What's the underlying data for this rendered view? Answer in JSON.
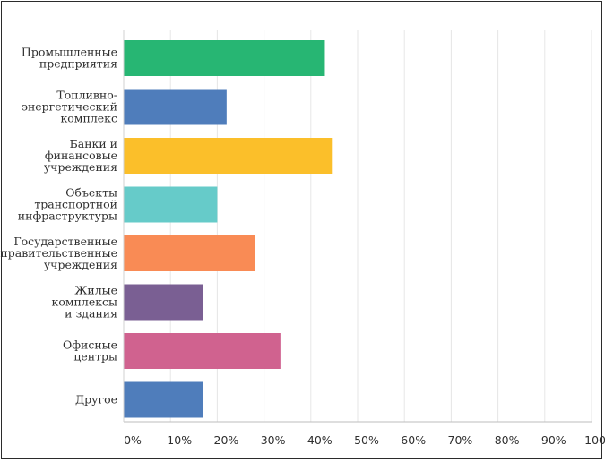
{
  "chart_data": {
    "type": "bar",
    "orientation": "horizontal",
    "title": "",
    "xlabel": "",
    "ylabel": "",
    "xlim": [
      0,
      100
    ],
    "grid": true,
    "categories": [
      [
        "Промышленные",
        "предприятия"
      ],
      [
        "Топливно-",
        "энергетический",
        "комплекс"
      ],
      [
        "Банки и",
        "финансовые",
        "учреждения"
      ],
      [
        "Объекты",
        "транспортной",
        "инфраструктуры"
      ],
      [
        "Государственные",
        "и правительственные",
        "учреждения"
      ],
      [
        "Жилые",
        "комплексы",
        "и здания"
      ],
      [
        "Офисные",
        "центры"
      ],
      [
        "Другое"
      ]
    ],
    "values": [
      43,
      22,
      44.5,
      20,
      28,
      17,
      33.5,
      17
    ],
    "colors": [
      "#27b673",
      "#4f7dbb",
      "#fbbf2a",
      "#66cbc9",
      "#f98b55",
      "#7a5f93",
      "#d0628f",
      "#4f7dbb"
    ],
    "ticks": [
      0,
      10,
      20,
      30,
      40,
      50,
      60,
      70,
      80,
      90,
      100
    ],
    "tick_labels": [
      "0%",
      "10%",
      "20%",
      "30%",
      "40%",
      "50%",
      "60%",
      "70%",
      "80%",
      "90%",
      "100%"
    ]
  }
}
